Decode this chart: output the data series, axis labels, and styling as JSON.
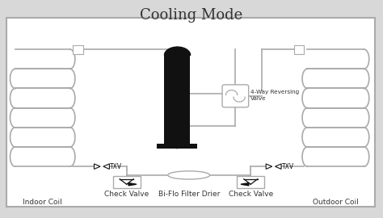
{
  "title": "Cooling Mode",
  "title_fontsize": 13,
  "bg_color": "#d8d8d8",
  "diagram_bg": "#ffffff",
  "line_color": "#aaaaaa",
  "dark_color": "#111111",
  "pipe_lw": 1.2,
  "labels": {
    "indoor_coil": "Indoor Coil",
    "outdoor_coil": "Outdoor Coil",
    "check_valve_left": "Check Valve",
    "check_valve_right": "Check Valve",
    "txv_left": "TXV",
    "txv_right": "TXV",
    "filter_drier": "Bi-Flo Filter Drier",
    "reversing_valve": "4-Way Reversing\nValve"
  }
}
